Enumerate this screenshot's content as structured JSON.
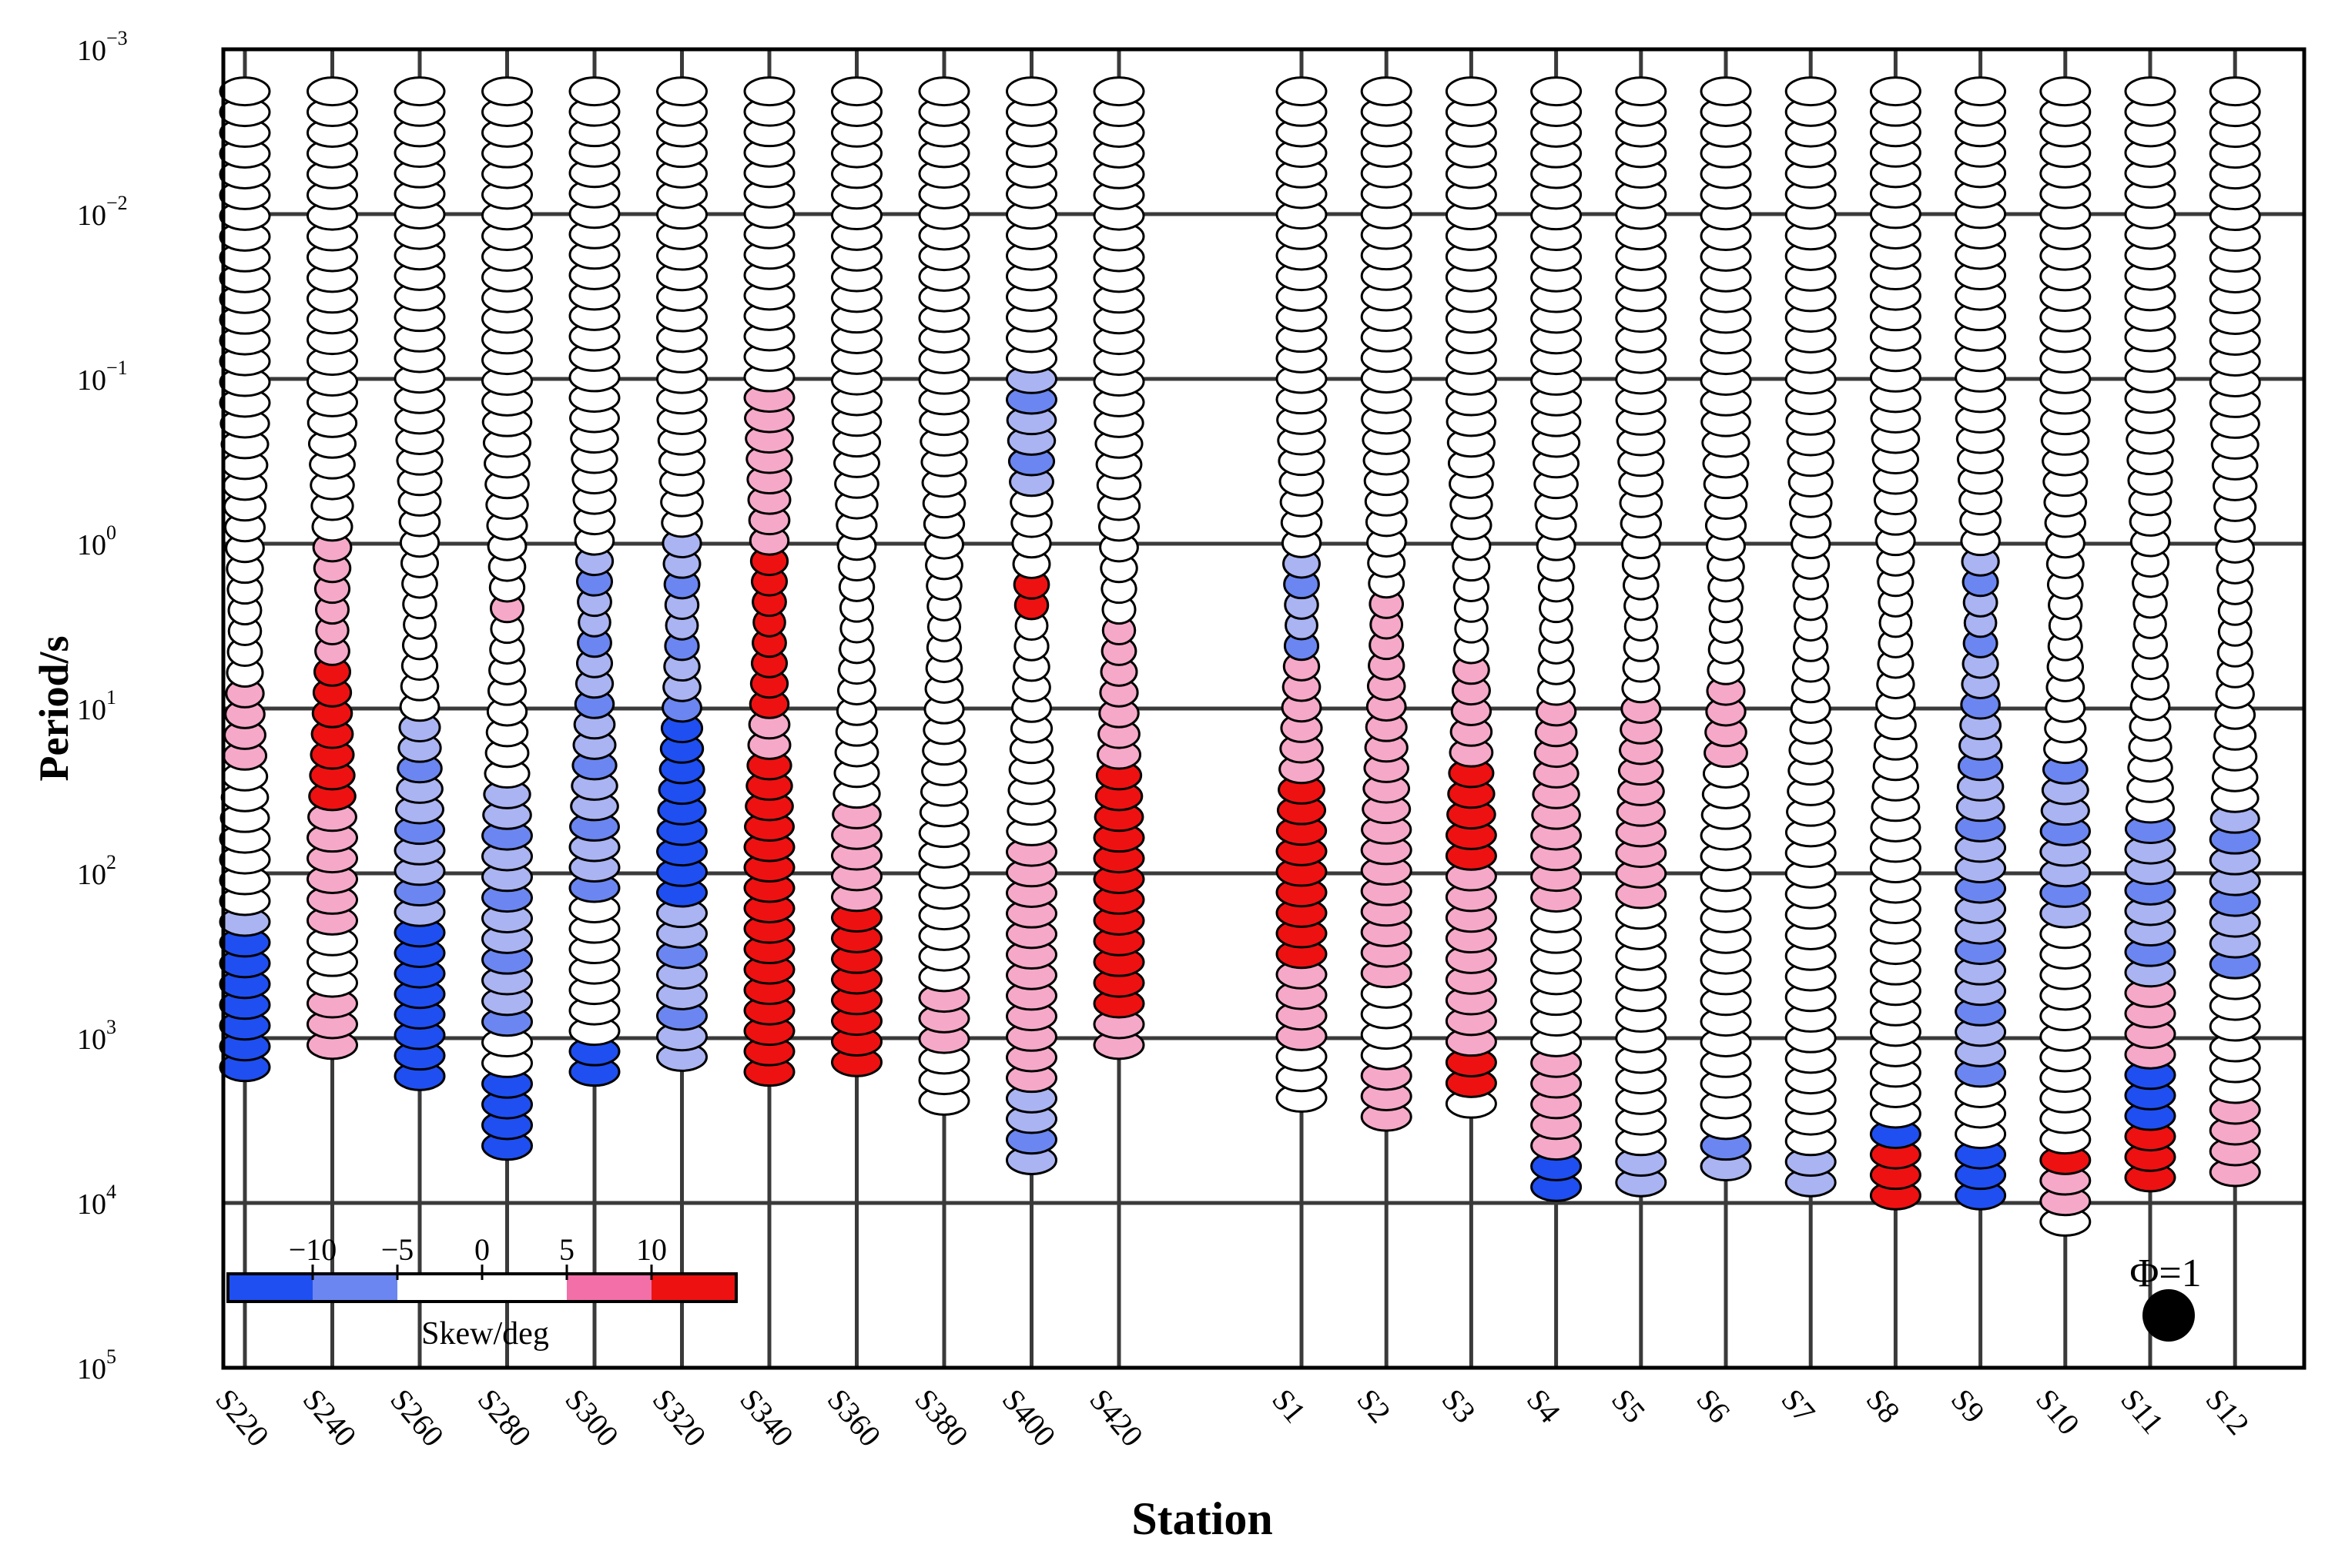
{
  "chart_data": {
    "type": "phase-tensor-pseudosection",
    "xlabel": "Station",
    "ylabel": "Period/s",
    "y_scale": "log",
    "y_axis_direction": "downward increasing",
    "ylim": [
      0.001,
      100000
    ],
    "y_ticks": [
      {
        "base": "10",
        "exp": "−3",
        "value": 0.001
      },
      {
        "base": "10",
        "exp": "−2",
        "value": 0.01
      },
      {
        "base": "10",
        "exp": "−1",
        "value": 0.1
      },
      {
        "base": "10",
        "exp": "0",
        "value": 1
      },
      {
        "base": "10",
        "exp": "1",
        "value": 10
      },
      {
        "base": "10",
        "exp": "2",
        "value": 100
      },
      {
        "base": "10",
        "exp": "3",
        "value": 1000
      },
      {
        "base": "10",
        "exp": "4",
        "value": 10000
      },
      {
        "base": "10",
        "exp": "5",
        "value": 100000
      }
    ],
    "stations": [
      "S220",
      "S240",
      "S260",
      "S280",
      "S300",
      "S320",
      "S340",
      "S360",
      "S380",
      "S400",
      "S420",
      "S1",
      "S2",
      "S3",
      "S4",
      "S5",
      "S6",
      "S7",
      "S8",
      "S9",
      "S10",
      "S11",
      "S12"
    ],
    "station_groups": [
      [
        "S220",
        "S240",
        "S260",
        "S280",
        "S300",
        "S320",
        "S340",
        "S360",
        "S380",
        "S400",
        "S420"
      ],
      [
        "S1",
        "S2",
        "S3",
        "S4",
        "S5",
        "S6",
        "S7",
        "S8",
        "S9",
        "S10",
        "S11",
        "S12"
      ]
    ],
    "legend": {
      "title": "Skew/deg",
      "tick_labels": [
        "−10",
        "−5",
        "0",
        "5",
        "10"
      ],
      "bins": [
        {
          "range": "< −10",
          "color": "#1f4ff0"
        },
        {
          "range": "−10 to −5",
          "color": "#6b86f0"
        },
        {
          "range": "−5 to 0",
          "color": "#ffffff"
        },
        {
          "range": "0 to 5",
          "color": "#ffffff"
        },
        {
          "range": "5 to 10",
          "color": "#f26fa8"
        },
        {
          "range": "> 10",
          "color": "#ee1111"
        }
      ]
    },
    "scale_reference": {
      "label": "Φ=1",
      "color": "#000000"
    },
    "series": [
      {
        "station": "S220",
        "max_period": 1500,
        "segments": [
          [
            0.002,
            1,
            "w"
          ],
          [
            1,
            8,
            "w"
          ],
          [
            8,
            20,
            "p"
          ],
          [
            20,
            150,
            "w"
          ],
          [
            150,
            250,
            "lb"
          ],
          [
            250,
            500,
            "b"
          ],
          [
            500,
            1500,
            "b"
          ]
        ]
      },
      {
        "station": "S240",
        "max_period": 1100,
        "segments": [
          [
            0.002,
            1,
            "w"
          ],
          [
            1,
            5,
            "p"
          ],
          [
            5,
            40,
            "r"
          ],
          [
            40,
            250,
            "p"
          ],
          [
            250,
            600,
            "w"
          ],
          [
            600,
            1100,
            "p"
          ]
        ]
      },
      {
        "station": "S260",
        "max_period": 1700,
        "segments": [
          [
            0.002,
            10,
            "w"
          ],
          [
            10,
            50,
            "lb"
          ],
          [
            50,
            200,
            "lb"
          ],
          [
            200,
            1700,
            "b"
          ]
        ]
      },
      {
        "station": "S280",
        "max_period": 4500,
        "segments": [
          [
            0.002,
            2,
            "w"
          ],
          [
            2,
            3,
            "p"
          ],
          [
            3,
            30,
            "w"
          ],
          [
            30,
            200,
            "lb"
          ],
          [
            200,
            800,
            "lb"
          ],
          [
            800,
            1500,
            "w"
          ],
          [
            1500,
            4500,
            "b"
          ]
        ]
      },
      {
        "station": "S300",
        "max_period": 1600,
        "segments": [
          [
            0.002,
            1,
            "w"
          ],
          [
            1,
            20,
            "lb"
          ],
          [
            20,
            150,
            "lb"
          ],
          [
            150,
            1000,
            "w"
          ],
          [
            1000,
            1600,
            "b"
          ]
        ]
      },
      {
        "station": "S320",
        "max_period": 1300,
        "segments": [
          [
            0.002,
            0.8,
            "w"
          ],
          [
            0.8,
            10,
            "lb"
          ],
          [
            10,
            40,
            "b"
          ],
          [
            40,
            150,
            "b"
          ],
          [
            150,
            1300,
            "lb"
          ]
        ]
      },
      {
        "station": "S340",
        "max_period": 1600,
        "segments": [
          [
            0.002,
            0.1,
            "w"
          ],
          [
            0.1,
            0.5,
            "p"
          ],
          [
            0.5,
            1,
            "p"
          ],
          [
            1,
            10,
            "r"
          ],
          [
            10,
            20,
            "p"
          ],
          [
            20,
            100,
            "r"
          ],
          [
            100,
            1600,
            "r"
          ]
        ]
      },
      {
        "station": "S360",
        "max_period": 1400,
        "segments": [
          [
            0.002,
            40,
            "w"
          ],
          [
            40,
            150,
            "p"
          ],
          [
            150,
            1400,
            "r"
          ]
        ]
      },
      {
        "station": "S380",
        "max_period": 2400,
        "segments": [
          [
            0.002,
            500,
            "w"
          ],
          [
            500,
            1200,
            "p"
          ],
          [
            1200,
            2400,
            "w"
          ]
        ]
      },
      {
        "station": "S400",
        "max_period": 5500,
        "segments": [
          [
            0.002,
            0.1,
            "w"
          ],
          [
            0.1,
            0.5,
            "lb"
          ],
          [
            0.5,
            1.5,
            "w"
          ],
          [
            1.5,
            3,
            "r"
          ],
          [
            3,
            60,
            "w"
          ],
          [
            60,
            2000,
            "p"
          ],
          [
            2000,
            5500,
            "lb"
          ]
        ]
      },
      {
        "station": "S420",
        "max_period": 1100,
        "segments": [
          [
            0.002,
            3,
            "w"
          ],
          [
            3,
            20,
            "p"
          ],
          [
            20,
            80,
            "r"
          ],
          [
            80,
            800,
            "r"
          ],
          [
            800,
            1100,
            "p"
          ]
        ]
      },
      {
        "station": "S1",
        "max_period": 2300,
        "segments": [
          [
            0.002,
            1,
            "w"
          ],
          [
            1,
            5,
            "lb"
          ],
          [
            5,
            30,
            "p"
          ],
          [
            30,
            400,
            "r"
          ],
          [
            400,
            1000,
            "p"
          ],
          [
            1000,
            2300,
            "w"
          ]
        ]
      },
      {
        "station": "S2",
        "max_period": 3000,
        "segments": [
          [
            0.002,
            2,
            "w"
          ],
          [
            2,
            20,
            "p"
          ],
          [
            20,
            500,
            "p"
          ],
          [
            500,
            1500,
            "w"
          ],
          [
            1500,
            3000,
            "p"
          ]
        ]
      },
      {
        "station": "S3",
        "max_period": 2500,
        "segments": [
          [
            0.002,
            5,
            "w"
          ],
          [
            5,
            20,
            "p"
          ],
          [
            20,
            80,
            "r"
          ],
          [
            80,
            1200,
            "p"
          ],
          [
            1200,
            2500,
            "r"
          ]
        ]
      },
      {
        "station": "S4",
        "max_period": 8000,
        "segments": [
          [
            0.002,
            10,
            "w"
          ],
          [
            10,
            150,
            "p"
          ],
          [
            150,
            1200,
            "w"
          ],
          [
            1200,
            5000,
            "p"
          ],
          [
            5000,
            8000,
            "b"
          ]
        ]
      },
      {
        "station": "S5",
        "max_period": 7500,
        "segments": [
          [
            0.002,
            10,
            "w"
          ],
          [
            10,
            150,
            "p"
          ],
          [
            150,
            5000,
            "w"
          ],
          [
            5000,
            7500,
            "lb"
          ]
        ]
      },
      {
        "station": "S6",
        "max_period": 6000,
        "segments": [
          [
            0.002,
            6,
            "w"
          ],
          [
            6,
            20,
            "p"
          ],
          [
            20,
            4000,
            "w"
          ],
          [
            4000,
            6000,
            "lb"
          ]
        ]
      },
      {
        "station": "S7",
        "max_period": 7500,
        "segments": [
          [
            0.002,
            5000,
            "w"
          ],
          [
            5000,
            7500,
            "lb"
          ]
        ]
      },
      {
        "station": "S8",
        "max_period": 9000,
        "segments": [
          [
            0.002,
            3000,
            "w"
          ],
          [
            3000,
            5000,
            "b"
          ],
          [
            5000,
            9000,
            "r"
          ]
        ]
      },
      {
        "station": "S9",
        "max_period": 9000,
        "segments": [
          [
            0.002,
            1,
            "w"
          ],
          [
            1,
            50,
            "lb"
          ],
          [
            50,
            2000,
            "lb"
          ],
          [
            2000,
            5000,
            "w"
          ],
          [
            5000,
            9000,
            "b"
          ]
        ]
      },
      {
        "station": "S10",
        "max_period": 13000,
        "segments": [
          [
            0.002,
            20,
            "w"
          ],
          [
            20,
            200,
            "lb"
          ],
          [
            200,
            5000,
            "w"
          ],
          [
            5000,
            7000,
            "r"
          ],
          [
            7000,
            13000,
            "p"
          ]
        ]
      },
      {
        "station": "S11",
        "max_period": 7000,
        "segments": [
          [
            0.002,
            50,
            "w"
          ],
          [
            50,
            500,
            "lb"
          ],
          [
            500,
            1500,
            "p"
          ],
          [
            1500,
            3000,
            "b"
          ],
          [
            3000,
            7000,
            "r"
          ]
        ]
      },
      {
        "station": "S12",
        "max_period": 6500,
        "segments": [
          [
            0.002,
            40,
            "w"
          ],
          [
            40,
            400,
            "lb"
          ],
          [
            400,
            2500,
            "w"
          ],
          [
            2500,
            6500,
            "p"
          ]
        ]
      }
    ]
  }
}
